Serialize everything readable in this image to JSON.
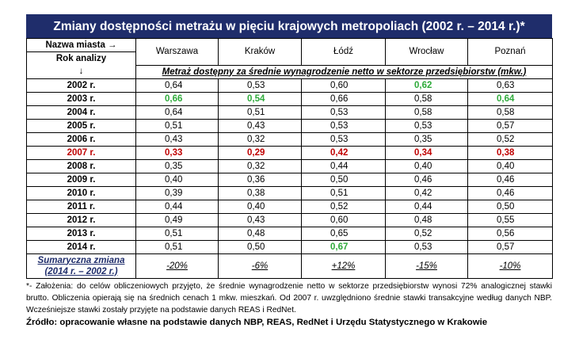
{
  "title": "Zmiany dostępności metrażu w pięciu krajowych metropoliach (2002 r. – 2014 r.)*",
  "header": {
    "corner_line1": "Nazwa miasta →",
    "corner_line2": "Rok analizy",
    "corner_arrow": "↓",
    "cities": [
      "Warszawa",
      "Kraków",
      "Łódź",
      "Wrocław",
      "Poznań"
    ],
    "subheader": "Metraż dostępny za średnie wynagrodzenie netto w sektorze przedsiębiorstw (mkw.)"
  },
  "rows": [
    {
      "year": "2002 r.",
      "values": [
        "0,64",
        "0,53",
        "0,60",
        "0,62",
        "0,63"
      ]
    },
    {
      "year": "2003 r.",
      "values": [
        "0,66",
        "0,54",
        "0,66",
        "0,58",
        "0,64"
      ]
    },
    {
      "year": "2004 r.",
      "values": [
        "0,64",
        "0,51",
        "0,53",
        "0,58",
        "0,58"
      ]
    },
    {
      "year": "2005 r.",
      "values": [
        "0,51",
        "0,43",
        "0,53",
        "0,53",
        "0,57"
      ]
    },
    {
      "year": "2006 r.",
      "values": [
        "0,43",
        "0,32",
        "0,53",
        "0,35",
        "0,52"
      ]
    },
    {
      "year": "2007 r.",
      "values": [
        "0,33",
        "0,29",
        "0,42",
        "0,34",
        "0,38"
      ]
    },
    {
      "year": "2008 r.",
      "values": [
        "0,35",
        "0,32",
        "0,44",
        "0,40",
        "0,40"
      ]
    },
    {
      "year": "2009 r.",
      "values": [
        "0,40",
        "0,36",
        "0,50",
        "0,46",
        "0,46"
      ]
    },
    {
      "year": "2010 r.",
      "values": [
        "0,39",
        "0,38",
        "0,51",
        "0,42",
        "0,46"
      ]
    },
    {
      "year": "2011 r.",
      "values": [
        "0,44",
        "0,40",
        "0,52",
        "0,44",
        "0,50"
      ]
    },
    {
      "year": "2012 r.",
      "values": [
        "0,49",
        "0,43",
        "0,60",
        "0,48",
        "0,55"
      ]
    },
    {
      "year": "2013 r.",
      "values": [
        "0,51",
        "0,48",
        "0,65",
        "0,52",
        "0,56"
      ]
    },
    {
      "year": "2014 r.",
      "values": [
        "0,51",
        "0,50",
        "0,67",
        "0,53",
        "0,57"
      ]
    }
  ],
  "summary": {
    "label_line1": "Sumaryczna zmiana",
    "label_line2": "(2014 r. – 2002 r.)",
    "values": [
      "-20%",
      "-6%",
      "+12%",
      "-15%",
      "-10%"
    ]
  },
  "notes": {
    "footnote": "*- Założenia: do celów obliczeniowych przyjęto, że średnie wynagrodzenie netto w sektorze przedsiębiorstw wynosi 72% analogicznej stawki brutto. Obliczenia opierają się na średnich cenach 1 mkw. mieszkań. Od 2007 r. uwzględniono średnie stawki transakcyjne według danych NBP. Wcześniejsze stawki zostały przyjęte na podstawie danych REAS i RedNet.",
    "source": "Źródło: opracowanie własne na podstawie danych NBP, REAS, RedNet i Urzędu Statystycznego w Krakowie"
  },
  "colors": {
    "title_background": "#1f2d6b",
    "highlight_max": "#2eaa3a",
    "highlight_min": "#c00000"
  }
}
